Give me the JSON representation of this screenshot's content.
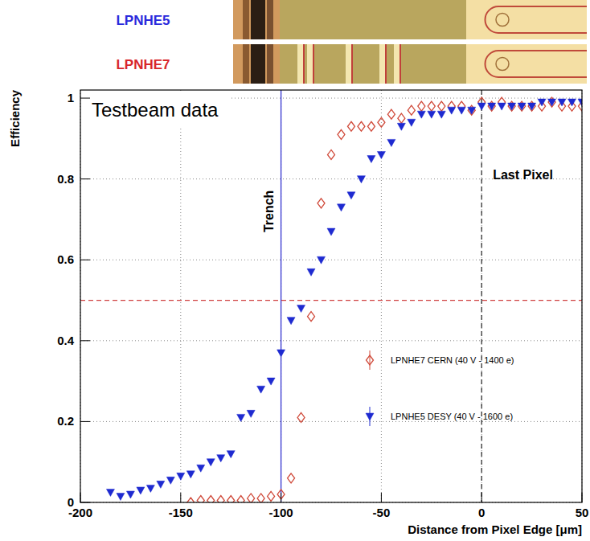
{
  "chart_data": {
    "type": "scatter",
    "annotation": "Testbeam data",
    "sample_labels": [
      {
        "label": "LPNHE5",
        "color": "#2a2adc"
      },
      {
        "label": "LPNHE7",
        "color": "#d8262a"
      }
    ],
    "x_label": "Distance from Pixel Edge [μm]",
    "y_label": "Efficiency",
    "xlim": [
      -200,
      50
    ],
    "ylim": [
      0,
      1.02
    ],
    "xticks": [
      -200,
      -150,
      -100,
      -50,
      0,
      50
    ],
    "yticks": [
      0,
      0.2,
      0.4,
      0.6,
      0.8,
      1
    ],
    "grid": true,
    "legend": "lower right",
    "reference_lines": [
      {
        "axis": "x",
        "value": -100,
        "label": "Trench",
        "color": "#3535d0",
        "line_style": "solid"
      },
      {
        "axis": "x",
        "value": 0,
        "label": "Last Pixel",
        "color": "#333333",
        "line_style": "dashed"
      },
      {
        "axis": "y",
        "value": 0.5,
        "color": "#d04040",
        "line_style": "dashed"
      }
    ],
    "series": [
      {
        "name": "LPNHE7 CERN (40 V - 1400 e)",
        "color": "#d04a3a",
        "marker": "diamond-open",
        "x": [
          -145,
          -140,
          -135,
          -130,
          -125,
          -120,
          -115,
          -110,
          -105,
          -100,
          -95,
          -90,
          -85,
          -80,
          -75,
          -70,
          -65,
          -60,
          -55,
          -50,
          -45,
          -40,
          -35,
          -30,
          -25,
          -20,
          -15,
          -10,
          -5,
          0,
          5,
          10,
          15,
          20,
          25,
          30,
          35,
          40,
          45,
          50
        ],
        "values": [
          0.0,
          0.005,
          0.005,
          0.005,
          0.005,
          0.005,
          0.01,
          0.01,
          0.015,
          0.02,
          0.06,
          0.21,
          0.46,
          0.74,
          0.86,
          0.91,
          0.93,
          0.93,
          0.93,
          0.94,
          0.96,
          0.95,
          0.97,
          0.98,
          0.98,
          0.98,
          0.98,
          0.98,
          0.97,
          0.99,
          0.98,
          0.99,
          0.98,
          0.98,
          0.98,
          0.98,
          0.99,
          0.98,
          0.98,
          0.98
        ]
      },
      {
        "name": "LPNHE5 DESY (40 V - 1600 e)",
        "color": "#1e2ad0",
        "marker": "triangle-down",
        "x": [
          -185,
          -180,
          -175,
          -170,
          -165,
          -160,
          -155,
          -150,
          -145,
          -140,
          -135,
          -130,
          -125,
          -120,
          -115,
          -110,
          -105,
          -100,
          -95,
          -90,
          -85,
          -80,
          -75,
          -70,
          -65,
          -60,
          -55,
          -50,
          -45,
          -40,
          -35,
          -30,
          -25,
          -20,
          -15,
          -10,
          -5,
          0,
          5,
          10,
          15,
          20,
          25,
          30,
          35,
          40,
          45,
          50
        ],
        "values": [
          0.025,
          0.015,
          0.02,
          0.03,
          0.035,
          0.045,
          0.055,
          0.065,
          0.07,
          0.085,
          0.1,
          0.11,
          0.12,
          0.21,
          0.22,
          0.28,
          0.3,
          0.37,
          0.45,
          0.48,
          0.57,
          0.6,
          0.67,
          0.73,
          0.76,
          0.8,
          0.85,
          0.86,
          0.89,
          0.93,
          0.94,
          0.96,
          0.96,
          0.96,
          0.97,
          0.97,
          0.97,
          0.98,
          0.98,
          0.98,
          0.98,
          0.98,
          0.98,
          0.99,
          0.99,
          0.99,
          0.99,
          0.99
        ]
      }
    ]
  }
}
